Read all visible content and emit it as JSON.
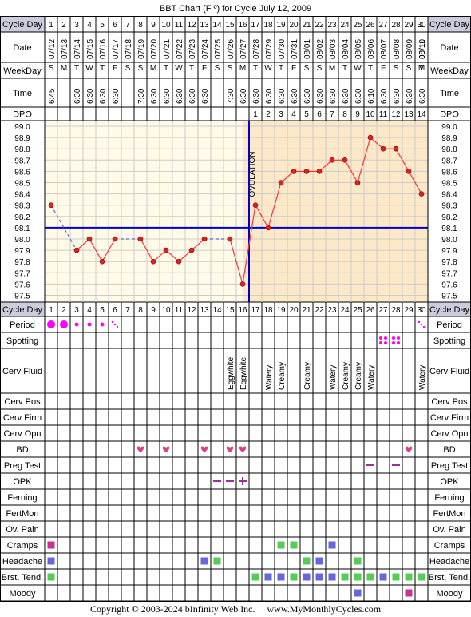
{
  "title": "BBT Chart (F º) for Cycle July 12, 2009",
  "copyright": "Copyright © 2003-2024 bInfinity Web Inc.     www.MyMonthlyCycles.com",
  "colors": {
    "line": "#ff3333",
    "point": "#dd2222",
    "coverline": "#0000cc",
    "ovulation": "#0000cc",
    "post_ovulation_bg": "#fde9c8",
    "pre_ovulation_bg": "#fffbe8",
    "header_bg": "#ccccdd",
    "period": "#ff00ff",
    "bd": "#e03c8a",
    "preg": "#993399",
    "green": "#55cc55",
    "blue": "#6666dd",
    "magenta": "#cc3388"
  },
  "labels": {
    "cycle_day": "Cycle Day",
    "date": "Date",
    "weekday": "WeekDay",
    "time": "Time",
    "dpo": "DPO",
    "period": "Period",
    "spotting": "Spotting",
    "cerv_fluid": "Cerv Fluid",
    "cerv_pos": "Cerv Pos",
    "cerv_firm": "Cerv Firm",
    "cerv_opn": "Cerv Opn",
    "bd": "BD",
    "preg_test": "Preg Test",
    "opk": "OPK",
    "ferning": "Ferning",
    "fertmon": "FertMon",
    "ov_pain": "Ov. Pain",
    "cramps": "Cramps",
    "headache": "Headache",
    "brst_tend": "Brst. Tend.",
    "moody": "Moody",
    "ovulation": "OVULATION"
  },
  "chart_data": {
    "type": "line",
    "title": "BBT Chart (F º) for Cycle July 12, 2009",
    "ylim": [
      97.5,
      99.0
    ],
    "yticks": [
      "99.0",
      "98.9",
      "98.8",
      "98.7",
      "98.6",
      "98.5",
      "98.4",
      "98.3",
      "98.2",
      "98.1",
      "98.0",
      "97.9",
      "97.8",
      "97.7",
      "97.6",
      "97.5"
    ],
    "coverline": 98.1,
    "ovulation_day": 16,
    "cycle_days": [
      "1",
      "2",
      "3",
      "4",
      "5",
      "6",
      "7",
      "8",
      "9",
      "10",
      "11",
      "12",
      "13",
      "14",
      "15",
      "16",
      "17",
      "18",
      "19",
      "20",
      "21",
      "22",
      "23",
      "24",
      "25",
      "26",
      "27",
      "28",
      "29",
      "30",
      "1"
    ],
    "dates": [
      "07/12",
      "07/13",
      "07/14",
      "07/15",
      "07/16",
      "07/17",
      "07/18",
      "07/19",
      "07/20",
      "07/21",
      "07/22",
      "07/23",
      "07/24",
      "07/25",
      "07/26",
      "07/27",
      "07/28",
      "07/29",
      "07/30",
      "07/31",
      "08/01",
      "08/02",
      "08/03",
      "08/04",
      "08/05",
      "08/06",
      "08/07",
      "08/08",
      "08/09",
      "08/10",
      "08/11"
    ],
    "weekdays": [
      "S",
      "M",
      "T",
      "W",
      "T",
      "F",
      "S",
      "S",
      "M",
      "T",
      "W",
      "T",
      "F",
      "S",
      "S",
      "M",
      "T",
      "W",
      "T",
      "F",
      "S",
      "S",
      "M",
      "T",
      "W",
      "T",
      "F",
      "S",
      "S",
      "M",
      "T"
    ],
    "times": [
      "6:45",
      "",
      "6:30",
      "6:30",
      "6:30",
      "6:30",
      "",
      "7:30",
      "6:30",
      "6:30",
      "6:30",
      "6:30",
      "6:30",
      "",
      "7:30",
      "6:30",
      "6:30",
      "6:30",
      "6:30",
      "6:30",
      "6:30",
      "6:30",
      "6:30",
      "6:30",
      "6:30",
      "6:10",
      "6:30",
      "6:30",
      "6:30",
      "6:30",
      ""
    ],
    "dpo": [
      "",
      "",
      "",
      "",
      "",
      "",
      "",
      "",
      "",
      "",
      "",
      "",
      "",
      "",
      "",
      "",
      "1",
      "2",
      "3",
      "4",
      "5",
      "6",
      "7",
      "8",
      "9",
      "10",
      "11",
      "12",
      "13",
      "14",
      ""
    ],
    "temps": [
      98.3,
      null,
      97.9,
      98.0,
      97.8,
      98.0,
      null,
      98.0,
      97.8,
      97.9,
      97.8,
      97.9,
      98.0,
      null,
      98.0,
      97.6,
      98.3,
      98.1,
      98.5,
      98.6,
      98.6,
      98.6,
      98.7,
      98.7,
      98.5,
      98.9,
      98.8,
      98.8,
      98.6,
      98.4,
      null
    ],
    "cerv_fluid": [
      "",
      "",
      "",
      "",
      "",
      "",
      "",
      "",
      "",
      "",
      "",
      "",
      "",
      "",
      "Eggwhite",
      "Eggwhite",
      "",
      "Watery",
      "Creamy",
      "",
      "Creamy",
      "",
      "Watery",
      "Creamy",
      "Creamy",
      "Watery",
      "",
      "",
      "",
      "Watery",
      ""
    ],
    "period": [
      "heavy",
      "heavy",
      "light",
      "light",
      "light",
      "spot",
      "",
      "",
      "",
      "",
      "",
      "",
      "",
      "",
      "",
      "",
      "",
      "",
      "",
      "",
      "",
      "",
      "",
      "",
      "",
      "",
      "",
      "",
      "",
      "",
      "spot"
    ],
    "spotting_days": [
      27,
      28
    ],
    "bd_days": [
      8,
      10,
      13,
      15,
      16,
      29
    ],
    "preg_test": {
      "26": "-",
      "28": "-"
    },
    "opk": {
      "14": "-",
      "15": "-",
      "16": "+"
    },
    "cramps": {
      "1": "magenta",
      "19": "green",
      "20": "green",
      "23": "blue"
    },
    "headache": {
      "1": "blue",
      "13": "blue",
      "14": "green",
      "21": "green",
      "22": "blue",
      "25": "green"
    },
    "brst_tend": {
      "1": "green",
      "17": "green",
      "18": "blue",
      "19": "blue",
      "20": "green",
      "21": "blue",
      "22": "blue",
      "23": "blue",
      "24": "green",
      "25": "green",
      "26": "green",
      "27": "blue",
      "28": "green",
      "29": "green",
      "30": "green",
      "31": "green"
    },
    "moody": {
      "25": "blue",
      "29": "magenta"
    }
  }
}
